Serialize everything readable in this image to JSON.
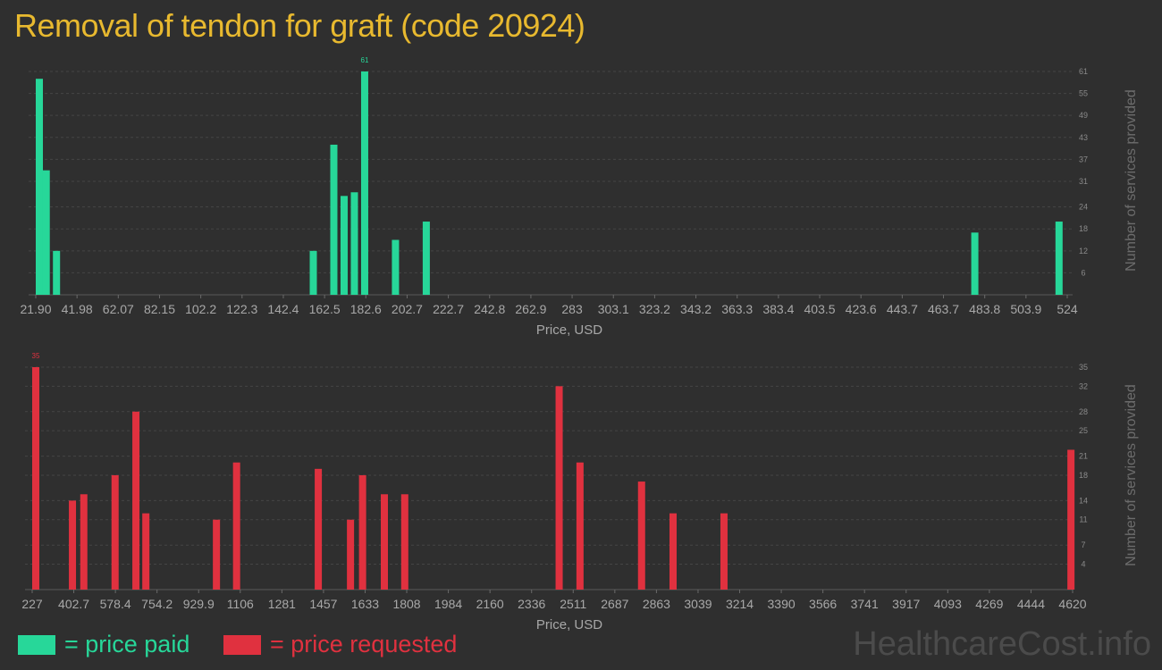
{
  "title": "Removal of tendon for graft (code 20924)",
  "chart_data": [
    {
      "type": "bar",
      "name": "price paid",
      "color": "#27d799",
      "xlabel": "Price, USD",
      "ylabel": "Number of services provided",
      "x_tick_labels": [
        "21.90",
        "41.98",
        "62.07",
        "82.15",
        "102.2",
        "122.3",
        "142.4",
        "162.5",
        "182.6",
        "202.7",
        "222.7",
        "242.8",
        "262.9",
        "283",
        "303.1",
        "323.2",
        "343.2",
        "363.3",
        "383.4",
        "403.5",
        "423.6",
        "443.7",
        "463.7",
        "483.8",
        "503.9",
        "524"
      ],
      "x_range": [
        21.9,
        524
      ],
      "y_ticks": [
        6,
        12,
        18,
        24,
        31,
        37,
        43,
        49,
        55,
        61
      ],
      "ylim": [
        0,
        61
      ],
      "max_label": "61",
      "bars": [
        {
          "x": 21.9,
          "y": 59
        },
        {
          "x": 27.0,
          "y": 34
        },
        {
          "x": 32.0,
          "y": 12
        },
        {
          "x": 157.0,
          "y": 12
        },
        {
          "x": 167.0,
          "y": 41
        },
        {
          "x": 172.0,
          "y": 27
        },
        {
          "x": 177.0,
          "y": 28
        },
        {
          "x": 182.0,
          "y": 61
        },
        {
          "x": 197.0,
          "y": 15
        },
        {
          "x": 212.0,
          "y": 20
        },
        {
          "x": 479.0,
          "y": 17
        },
        {
          "x": 520.0,
          "y": 20
        }
      ]
    },
    {
      "type": "bar",
      "name": "price requested",
      "color": "#e0313f",
      "xlabel": "Price, USD",
      "ylabel": "Number of services provided",
      "x_tick_labels": [
        "227",
        "402.7",
        "578.4",
        "754.2",
        "929.9",
        "1106",
        "1281",
        "1457",
        "1633",
        "1808",
        "1984",
        "2160",
        "2336",
        "2511",
        "2687",
        "2863",
        "3039",
        "3214",
        "3390",
        "3566",
        "3741",
        "3917",
        "4093",
        "4269",
        "4444",
        "4620"
      ],
      "x_range": [
        227,
        4620
      ],
      "y_ticks": [
        4,
        7,
        11,
        14,
        18,
        21,
        25,
        28,
        32,
        35
      ],
      "ylim": [
        0,
        35
      ],
      "max_label": "35",
      "bars": [
        {
          "x": 227,
          "y": 35
        },
        {
          "x": 397,
          "y": 14
        },
        {
          "x": 445,
          "y": 15
        },
        {
          "x": 577,
          "y": 18
        },
        {
          "x": 665,
          "y": 28
        },
        {
          "x": 707,
          "y": 12
        },
        {
          "x": 1005,
          "y": 11
        },
        {
          "x": 1090,
          "y": 20
        },
        {
          "x": 1435,
          "y": 19
        },
        {
          "x": 1571,
          "y": 11
        },
        {
          "x": 1622,
          "y": 18
        },
        {
          "x": 1714,
          "y": 15
        },
        {
          "x": 1800,
          "y": 15
        },
        {
          "x": 2452,
          "y": 32
        },
        {
          "x": 2540,
          "y": 20
        },
        {
          "x": 2800,
          "y": 17
        },
        {
          "x": 2933,
          "y": 12
        },
        {
          "x": 3148,
          "y": 12
        },
        {
          "x": 4613,
          "y": 22
        }
      ]
    }
  ],
  "legend": {
    "paid_label": "= price paid",
    "requested_label": "= price requested",
    "paid_color": "#27d799",
    "requested_color": "#e0313f"
  },
  "watermark": "HealthcareCost.info"
}
